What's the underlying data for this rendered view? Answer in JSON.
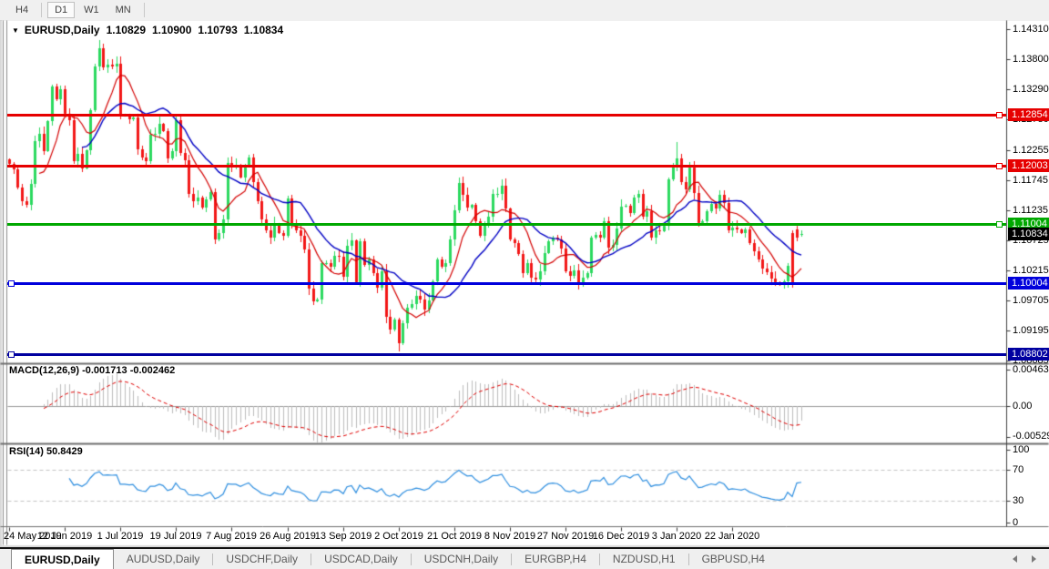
{
  "toolbar": {
    "buttons": [
      {
        "label": "H4",
        "active": false
      },
      {
        "label": "D1",
        "active": true
      },
      {
        "label": "W1",
        "active": false
      },
      {
        "label": "MN",
        "active": false
      }
    ]
  },
  "chart": {
    "title": "EURUSD,Daily",
    "ohlc": {
      "open": "1.10829",
      "high": "1.10900",
      "low": "1.10793",
      "close": "1.10834"
    },
    "current_price": 1.10834,
    "current_badge": {
      "label": "1.10834",
      "color": "#000000"
    },
    "price_ticks": [
      1.1431,
      1.138,
      1.1329,
      1.1278,
      1.12255,
      1.11745,
      1.11235,
      1.10725,
      1.10215,
      1.09705,
      1.09195,
      1.08685
    ],
    "hlines": [
      {
        "price": 1.12854,
        "label": "1.12854",
        "color": "#E60000",
        "marker": "right"
      },
      {
        "price": 1.12003,
        "label": "1.12003",
        "color": "#E60000",
        "marker": "right"
      },
      {
        "price": 1.11004,
        "label": "1.11004",
        "color": "#00A800",
        "marker": "right"
      },
      {
        "price": 1.10004,
        "label": "1.10004",
        "color": "#0000DC",
        "marker": "left"
      },
      {
        "price": 1.08802,
        "label": "1.08802",
        "color": "#0000A0",
        "marker": "left"
      }
    ],
    "dates": [
      "24 May 2019",
      "12 Jun 2019",
      "1 Jul 2019",
      "19 Jul 2019",
      "7 Aug 2019",
      "26 Aug 2019",
      "13 Sep 2019",
      "2 Oct 2019",
      "21 Oct 2019",
      "8 Nov 2019",
      "27 Nov 2019",
      "16 Dec 2019",
      "3 Jan 2020",
      "22 Jan 2020"
    ],
    "date_tick_step": 13,
    "candles": {
      "first_open": 1.121,
      "closes": [
        1.1202,
        1.1193,
        1.1162,
        1.114,
        1.1133,
        1.1168,
        1.1241,
        1.1253,
        1.1224,
        1.1275,
        1.1334,
        1.1312,
        1.1329,
        1.1288,
        1.1277,
        1.1208,
        1.1219,
        1.1195,
        1.1226,
        1.1293,
        1.1368,
        1.1399,
        1.1366,
        1.1371,
        1.1368,
        1.1373,
        1.1285,
        1.1285,
        1.1278,
        1.1282,
        1.1227,
        1.1213,
        1.1208,
        1.1252,
        1.1253,
        1.127,
        1.1259,
        1.1212,
        1.1224,
        1.1277,
        1.1221,
        1.1209,
        1.1151,
        1.114,
        1.1146,
        1.1128,
        1.1143,
        1.1155,
        1.1075,
        1.1085,
        1.1108,
        1.1204,
        1.12,
        1.12,
        1.118,
        1.1199,
        1.1213,
        1.1171,
        1.1139,
        1.1108,
        1.109,
        1.1078,
        1.11,
        1.1086,
        1.1081,
        1.1144,
        1.1101,
        1.109,
        1.108,
        1.1057,
        1.0991,
        1.097,
        1.0973,
        1.1035,
        1.1035,
        1.1028,
        1.1047,
        1.1045,
        1.1011,
        1.1063,
        1.1073,
        1.1002,
        1.1072,
        1.1031,
        1.104,
        1.1017,
        1.0993,
        1.1021,
        1.0943,
        1.0921,
        1.0939,
        1.0899,
        1.0932,
        1.0959,
        1.0965,
        1.0979,
        1.0972,
        1.0956,
        1.0971,
        1.1004,
        1.104,
        1.1028,
        1.1034,
        1.1074,
        1.1124,
        1.117,
        1.115,
        1.1128,
        1.1133,
        1.1105,
        1.108,
        1.1099,
        1.1113,
        1.1151,
        1.1152,
        1.1166,
        1.1127,
        1.1074,
        1.1068,
        1.105,
        1.1018,
        1.1034,
        1.1009,
        1.1007,
        1.1021,
        1.1052,
        1.1072,
        1.1078,
        1.1074,
        1.1059,
        1.1021,
        1.1013,
        1.1022,
        1.1001,
        1.1009,
        1.1018,
        1.1077,
        1.1082,
        1.1078,
        1.1105,
        1.106,
        1.1065,
        1.1093,
        1.113,
        1.1132,
        1.112,
        1.1145,
        1.1152,
        1.1113,
        1.1123,
        1.1078,
        1.109,
        1.1089,
        1.1098,
        1.1176,
        1.1199,
        1.1212,
        1.1172,
        1.116,
        1.1196,
        1.1153,
        1.1103,
        1.1106,
        1.1122,
        1.1134,
        1.1127,
        1.115,
        1.1136,
        1.109,
        1.1095,
        1.1091,
        1.1085,
        1.1092,
        1.1069,
        1.1055,
        1.104,
        1.1025,
        1.1019,
        1.1008,
        1.1002,
        1.0998,
        1.1003,
        1.103,
        1.0999,
        1.1078,
        1.10834
      ],
      "overrides": {
        "21": {
          "high": 1.1412
        },
        "91": {
          "low": 1.0885
        },
        "156": {
          "high": 1.1239
        },
        "182": {
          "open": 1.1003,
          "low": 1.0992
        },
        "183": {
          "open": 1.1085,
          "high": 1.109,
          "low": 1.0993
        },
        "184": {
          "open": 1.1092,
          "high": 1.1098,
          "low": 1.1072
        },
        "185": {
          "open": 1.10829,
          "high": 1.109,
          "low": 1.10793,
          "close": 1.10834
        }
      }
    },
    "ma_fast_period": 8,
    "ma_slow_period": 18,
    "colors": {
      "up": "#2BD95F",
      "down": "#F21717",
      "ma_fast": "#D40000",
      "ma_slow": "#0000C4",
      "macd_hist": "#BDBDBD",
      "macd_signal": "#E00000",
      "rsi": "#2F8FE0",
      "level_dash": "#C4C4C4"
    }
  },
  "macd": {
    "label": "MACD(12,26,9)",
    "values": "-0.001713 -0.002462",
    "fast": 12,
    "slow": 26,
    "signal": 9,
    "axis": [
      {
        "text": "0.00463",
        "value": 0.00463
      },
      {
        "text": "0.00",
        "value": 0
      },
      {
        "text": "-0.005299",
        "value": -0.005299
      }
    ]
  },
  "rsi": {
    "label": "RSI(14)",
    "value": "50.8429",
    "period": 14,
    "levels": [
      70,
      30
    ],
    "axis": [
      {
        "text": "100",
        "value": 100
      },
      {
        "text": "70",
        "value": 70
      },
      {
        "text": "30",
        "value": 30
      },
      {
        "text": "0",
        "value": 0
      }
    ]
  },
  "tabs": [
    {
      "label": "EURUSD,Daily",
      "active": true
    },
    {
      "label": "AUDUSD,Daily",
      "active": false
    },
    {
      "label": "USDCHF,Daily",
      "active": false
    },
    {
      "label": "USDCAD,Daily",
      "active": false
    },
    {
      "label": "USDCNH,Daily",
      "active": false
    },
    {
      "label": "EURGBP,H4",
      "active": false
    },
    {
      "label": "NZDUSD,H1",
      "active": false
    },
    {
      "label": "GBPUSD,H4",
      "active": false
    }
  ]
}
